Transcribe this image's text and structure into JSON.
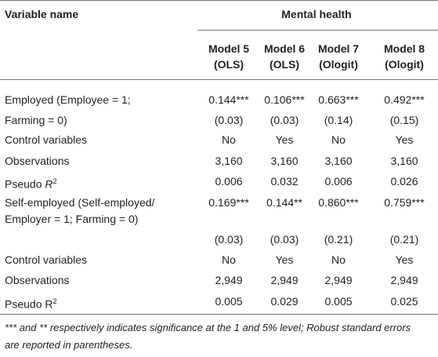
{
  "table": {
    "header": {
      "variable": "Variable name",
      "group": "Mental health",
      "models": [
        [
          "Model 5",
          "(OLS)"
        ],
        [
          "Model 6",
          "(OLS)"
        ],
        [
          "Model 7",
          "(Ologit)"
        ],
        [
          "Model 8",
          "(Ologit)"
        ]
      ]
    },
    "rows": [
      {
        "label": [
          "Employed (Employee = 1;"
        ],
        "cells": [
          "0.144***",
          "0.106***",
          "0.663***",
          "0.492***"
        ]
      },
      {
        "label": [
          "Farming = 0)"
        ],
        "cells": [
          "(0.03)",
          "(0.03)",
          "(0.14)",
          "(0.15)"
        ]
      },
      {
        "label": [
          "Control variables"
        ],
        "cells": [
          "No",
          "Yes",
          "No",
          "Yes"
        ]
      },
      {
        "label": [
          "Observations"
        ],
        "cells": [
          "3,160",
          "3,160",
          "3,160",
          "3,160"
        ]
      },
      {
        "label": [
          "Pseudo "
        ],
        "label_italic": "R",
        "label_sup": "2",
        "cells": [
          "0.006",
          "0.032",
          "0.006",
          "0.026"
        ]
      },
      {
        "label": [
          "Self-employed (Self-employed/",
          "Employer = 1; Farming = 0)"
        ],
        "cells": [
          "0.169***",
          "0.144**",
          "0.860***",
          "0.759***"
        ]
      },
      {
        "cells": [
          "(0.03)",
          "(0.03)",
          "(0.21)",
          "(0.21)"
        ]
      },
      {
        "label": [
          "Control variables"
        ],
        "cells": [
          "No",
          "Yes",
          "No",
          "Yes"
        ]
      },
      {
        "label": [
          "Observations"
        ],
        "cells": [
          "2,949",
          "2,949",
          "2,949",
          "2,949"
        ]
      },
      {
        "label": [
          "Pseudo R"
        ],
        "label_sup": "2",
        "cells": [
          "0.005",
          "0.029",
          "0.005",
          "0.025"
        ]
      }
    ],
    "footnote": [
      "*** and ** respectively indicates significance at the 1 and 5% level; Robust standard errors",
      "are reported in parentheses."
    ]
  }
}
